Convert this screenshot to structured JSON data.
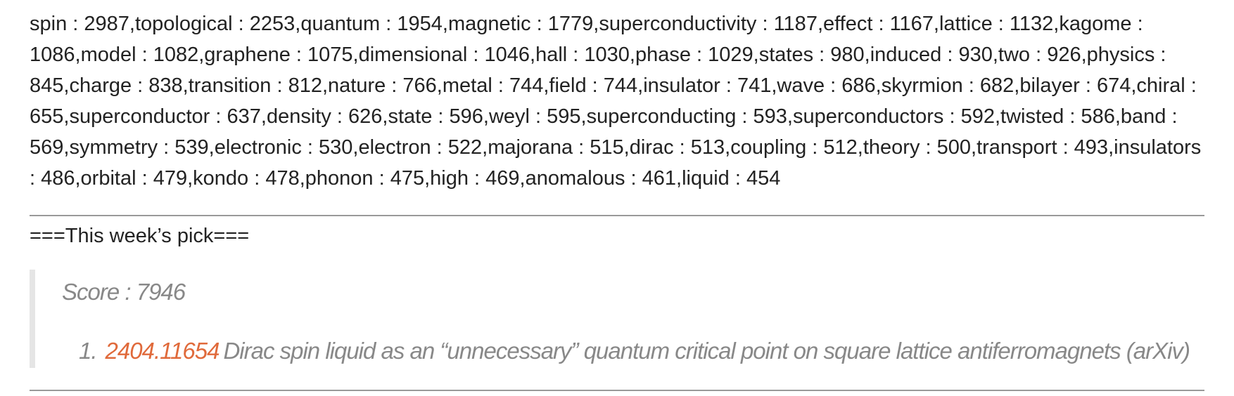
{
  "keywords": "spin : 2987,topological : 2253,quantum : 1954,magnetic : 1779,superconductivity : 1187,effect : 1167,lattice : 1132,kagome : 1086,model : 1082,graphene : 1075,dimensional : 1046,hall : 1030,phase : 1029,states : 980,induced : 930,two : 926,physics : 845,charge : 838,transition : 812,nature : 766,metal : 744,field : 744,insulator : 741,wave : 686,skyrmion : 682,bilayer : 674,chiral : 655,superconductor : 637,density : 626,state : 596,weyl : 595,superconducting : 593,superconductors : 592,twisted : 586,band : 569,symmetry : 539,electronic : 530,electron : 522,majorana : 515,dirac : 513,coupling : 512,theory : 500,transport : 493,insulators : 486,orbital : 479,kondo : 478,phonon : 475,high : 469,anomalous : 461,liquid : 454",
  "pick": {
    "heading": "===This week’s pick===",
    "score": "Score : 7946",
    "items": [
      {
        "number": "1.",
        "id": "2404.11654",
        "title": "Dirac spin liquid as an “unnecessary” quantum critical point on square lattice antiferromagnets (arXiv)"
      }
    ]
  }
}
